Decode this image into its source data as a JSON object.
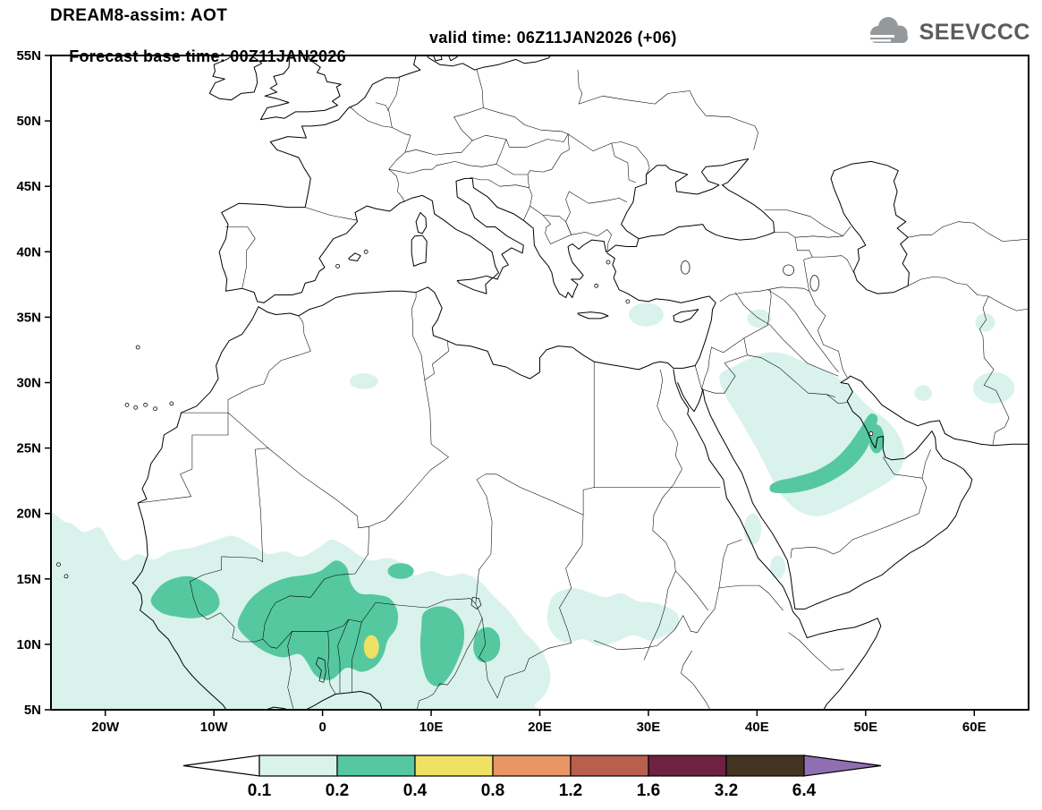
{
  "header": {
    "title": "DREAM8-assim: AOT",
    "subtitle_left": "Forecast base time: 00Z11JAN2026",
    "subtitle_right": "valid time: 06Z11JAN2026 (+06)",
    "logo_text": "SEEVCCC"
  },
  "chart_data": {
    "type": "heatmap",
    "title": "DREAM8-assim: AOT",
    "model": "DREAM8-assim",
    "variable": "AOT (aerosol optical thickness)",
    "forecast_base_time": "00Z11JAN2026",
    "valid_time": "06Z11JAN2026",
    "lead_time": "+06",
    "projection": "lat-lon",
    "lon_range": [
      -25,
      65
    ],
    "lat_range": [
      5,
      55
    ],
    "grid": false,
    "x_ticks": [
      {
        "lon": -20,
        "label": "20W"
      },
      {
        "lon": -10,
        "label": "10W"
      },
      {
        "lon": 0,
        "label": "0"
      },
      {
        "lon": 10,
        "label": "10E"
      },
      {
        "lon": 20,
        "label": "20E"
      },
      {
        "lon": 30,
        "label": "30E"
      },
      {
        "lon": 40,
        "label": "40E"
      },
      {
        "lon": 50,
        "label": "50E"
      },
      {
        "lon": 60,
        "label": "60E"
      }
    ],
    "y_ticks": [
      {
        "lat": 55,
        "label": "55N"
      },
      {
        "lat": 50,
        "label": "50N"
      },
      {
        "lat": 45,
        "label": "45N"
      },
      {
        "lat": 40,
        "label": "40N"
      },
      {
        "lat": 35,
        "label": "35N"
      },
      {
        "lat": 30,
        "label": "30N"
      },
      {
        "lat": 25,
        "label": "25N"
      },
      {
        "lat": 20,
        "label": "20N"
      },
      {
        "lat": 15,
        "label": "15N"
      },
      {
        "lat": 10,
        "label": "10N"
      },
      {
        "lat": 5,
        "label": "5N"
      }
    ],
    "colorbar": {
      "orientation": "horizontal",
      "levels": [
        0.1,
        0.2,
        0.4,
        0.8,
        1.2,
        1.6,
        3.2,
        6.4
      ],
      "labels": [
        "0.1",
        "0.2",
        "0.4",
        "0.8",
        "1.2",
        "1.6",
        "3.2",
        "6.4"
      ],
      "below_color": "#ffffff",
      "segment_colors": [
        "#d9f2ec",
        "#55c8a0",
        "#efe164",
        "#e79664",
        "#ba5f4e",
        "#6e2140",
        "#443522"
      ],
      "above_color": "#8f6fb2"
    },
    "aot_features": [
      {
        "region": "West Africa / Sahel plume",
        "aot_range": "0.1-0.4",
        "peak_aot": "0.4-0.8",
        "peak_location": {
          "lon": 4.5,
          "lat": 9.8
        },
        "extent_lon": [
          -25,
          33
        ],
        "extent_lat": [
          5,
          19
        ]
      },
      {
        "region": "Arabian Peninsula / Persian Gulf plume",
        "aot_range": "0.1-0.4",
        "core_arc_lon": [
          41,
          51.5
        ],
        "core_arc_lat": [
          21,
          27.5
        ],
        "extent_lon": [
          36,
          54
        ],
        "extent_lat": [
          19,
          32
        ]
      },
      {
        "region": "Eastern Mediterranean spot",
        "aot_range": "0.1-0.2",
        "location": {
          "lon": 29.8,
          "lat": 35.2
        }
      },
      {
        "region": "Northern Algeria spot",
        "aot_range": "0.1-0.2",
        "location": {
          "lon": 3.8,
          "lat": 30.1
        }
      },
      {
        "region": "SE Iran / Baluchistan spot",
        "aot_range": "0.1-0.2",
        "location": {
          "lon": 61.8,
          "lat": 29.6
        }
      },
      {
        "region": "Red Sea coastal spots",
        "aot_range": "0.1-0.2",
        "location": {
          "lon": 40.5,
          "lat": 17.5
        }
      }
    ]
  }
}
